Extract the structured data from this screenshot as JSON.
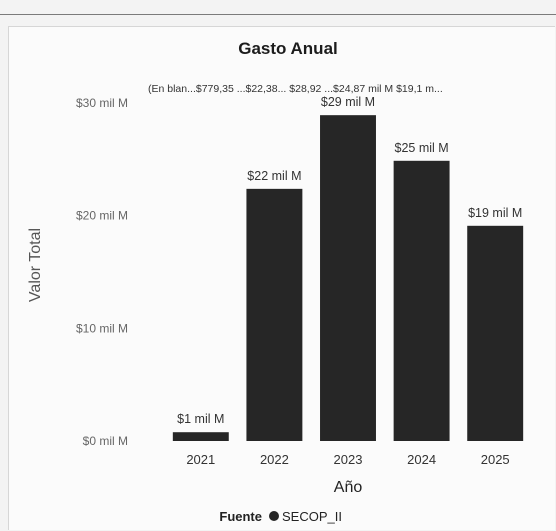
{
  "chart_data": {
    "type": "bar",
    "title": "Gasto Anual",
    "xlabel": "Año",
    "ylabel": "Valor Total",
    "categories": [
      "2021",
      "2022",
      "2023",
      "2024",
      "2025"
    ],
    "values": [
      0.78,
      22.38,
      28.92,
      24.87,
      19.1
    ],
    "data_labels": [
      "$1 mil M",
      "$22 mil M",
      "$29 mil M",
      "$25 mil M",
      "$19 mil M"
    ],
    "yticks": [
      0,
      10,
      20,
      30
    ],
    "ytick_labels": [
      "$0 mil M",
      "$10 mil M",
      "$20 mil M",
      "$30 mil M"
    ],
    "ylim": [
      0,
      30
    ],
    "grid": false,
    "bar_color": "#262626",
    "overflow_annotation": "(En blan...$779,35 ...$22,38... $28,92 ...$24,87 mil M $19,1 m...",
    "legend": {
      "title": "Fuente",
      "items": [
        {
          "label": "SECOP_II",
          "color": "#262626"
        }
      ],
      "position": "bottom-center"
    }
  }
}
